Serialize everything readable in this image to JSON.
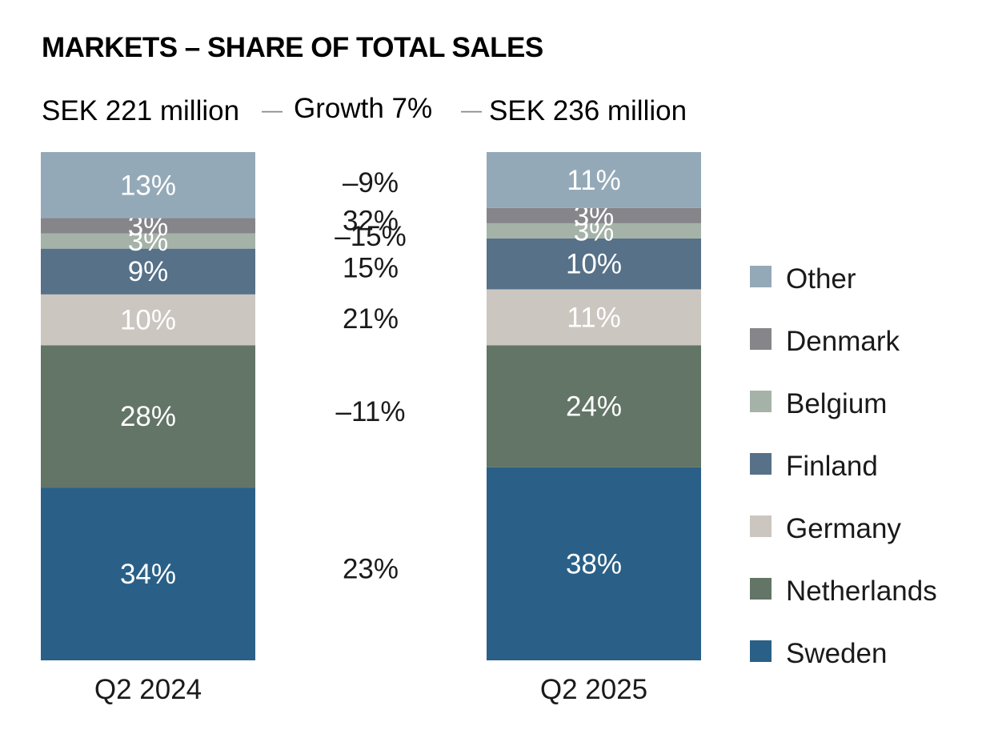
{
  "chart_data": {
    "type": "bar",
    "stacked": true,
    "title": "MARKETS – SHARE OF TOTAL SALES",
    "totals": [
      {
        "label": "SEK 221 million"
      },
      {
        "label": "Growth 7%"
      },
      {
        "label": "SEK 236 million"
      }
    ],
    "categories": [
      "Q2 2024",
      "Q2 2025"
    ],
    "series": [
      {
        "name": "Sweden",
        "color": "#2a6087",
        "values": [
          34,
          38
        ],
        "labels": [
          "34%",
          "38%"
        ],
        "growth": "23%"
      },
      {
        "name": "Netherlands",
        "color": "#637566",
        "values": [
          28,
          24
        ],
        "labels": [
          "28%",
          "24%"
        ],
        "growth": "–11%"
      },
      {
        "name": "Germany",
        "color": "#cbc6c0",
        "values": [
          10,
          11
        ],
        "labels": [
          "10%",
          "11%"
        ],
        "growth": "21%"
      },
      {
        "name": "Finland",
        "color": "#567188",
        "values": [
          9,
          10
        ],
        "labels": [
          "9%",
          "10%"
        ],
        "growth": "15%"
      },
      {
        "name": "Belgium",
        "color": "#a5b2a8",
        "values": [
          3,
          3
        ],
        "labels": [
          "3%",
          "3%"
        ],
        "growth": "–15%"
      },
      {
        "name": "Denmark",
        "color": "#85858a",
        "values": [
          3,
          3
        ],
        "labels": [
          "3%",
          "3%"
        ],
        "growth": "32%"
      },
      {
        "name": "Other",
        "color": "#94a9b8",
        "values": [
          13,
          11
        ],
        "labels": [
          "13%",
          "11%"
        ],
        "growth": "–9%"
      }
    ],
    "legend_position": "right",
    "grid": false
  }
}
